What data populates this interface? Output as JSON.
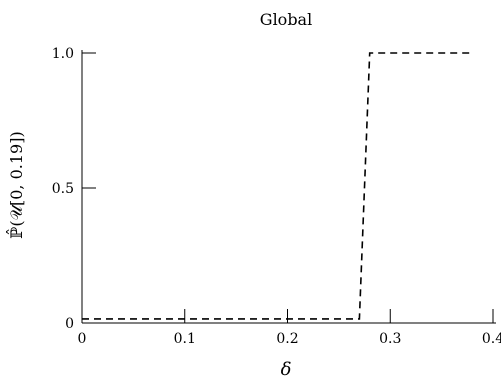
{
  "chart_data": {
    "type": "line",
    "title": "Global",
    "xlabel": "δ",
    "ylabel": "ℙ̂(𝒰[0, 0.19])",
    "xlim": [
      0,
      0.4
    ],
    "ylim": [
      0,
      1.0
    ],
    "x_ticks": [
      0,
      0.1,
      0.2,
      0.3,
      0.4
    ],
    "x_tick_labels": [
      "0",
      "0.1",
      "0.2",
      "0.3",
      "0.4"
    ],
    "y_ticks": [
      0,
      0.5,
      1.0
    ],
    "y_tick_labels": [
      "0",
      "0.5",
      "1.0"
    ],
    "grid": false,
    "series": [
      {
        "line_style": "dashed",
        "color": "#000000",
        "x": [
          0,
          0.27,
          0.28,
          0.38
        ],
        "y": [
          0.015,
          0.015,
          1.0,
          1.0
        ]
      }
    ]
  }
}
